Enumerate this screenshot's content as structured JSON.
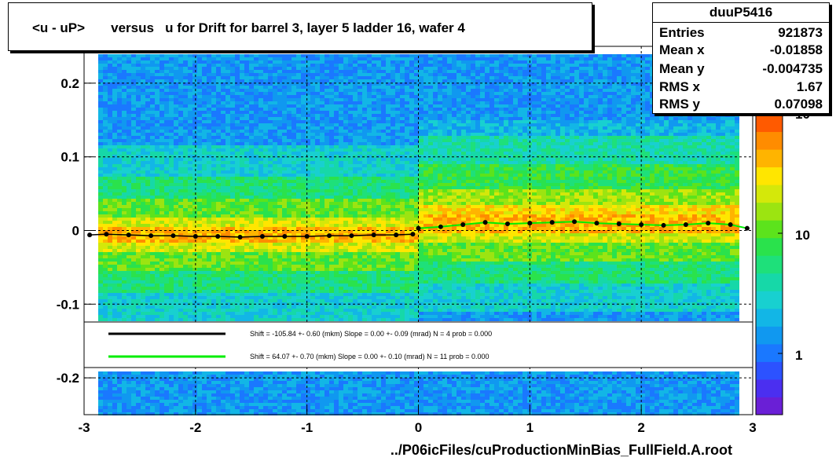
{
  "title": "<u - uP>       versus   u for Drift for barrel 3, layer 5 ladder 16, wafer 4",
  "stats": {
    "name": "duuP5416",
    "rows": [
      {
        "label": "Entries",
        "value": "921873"
      },
      {
        "label": "Mean x",
        "value": "-0.01858"
      },
      {
        "label": "Mean y",
        "value": "-0.004735"
      },
      {
        "label": "RMS x",
        "value": "1.67"
      },
      {
        "label": "RMS y",
        "value": "0.07098"
      }
    ]
  },
  "xlabel": "../P06icFiles/cuProductionMinBias_FullField.A.root",
  "colors": {
    "series1": "#000000",
    "series2": "#00ee00",
    "markers_open": "#ff33ff"
  },
  "chart_data": {
    "type": "heatmap",
    "xlim": [
      -3,
      3
    ],
    "ylim": [
      -0.25,
      0.25
    ],
    "x_ticks": [
      "-3",
      "-2",
      "-1",
      "0",
      "1",
      "2",
      "3"
    ],
    "y_ticks": [
      "0.2",
      "0.1",
      "0",
      "-0.1",
      "-0.2"
    ],
    "y_tick_values": [
      0.2,
      0.1,
      0,
      -0.1,
      -0.2
    ],
    "z_scale": "log",
    "z_ticks": [
      "1",
      "10",
      "10²"
    ],
    "z_tick_values": [
      1,
      10,
      100
    ],
    "grid": true,
    "legend": [
      {
        "text": "Shift =   -105.84 +- 0.60 (mkm) Slope =     0.00 +- 0.09 (mrad)  N = 4 prob = 0.000",
        "color": "#000000"
      },
      {
        "text": "Shift =    64.07 +- 0.70 (mkm) Slope =     0.00 +- 0.10 (mrad)  N = 11 prob = 0.000",
        "color": "#00ee00"
      }
    ],
    "series": [
      {
        "x": [
          -2.95,
          -2.8,
          -2.6,
          -2.4,
          -2.2,
          -2.0,
          -1.8,
          -1.6,
          -1.4,
          -1.2,
          -1.0,
          -0.8,
          -0.6,
          -0.4,
          -0.2,
          -0.05
        ],
        "values": [
          -0.006,
          -0.005,
          -0.006,
          -0.007,
          -0.007,
          -0.008,
          -0.008,
          -0.009,
          -0.008,
          -0.008,
          -0.008,
          -0.007,
          -0.007,
          -0.006,
          -0.006,
          -0.005
        ]
      },
      {
        "x": [
          0.0,
          0.2,
          0.4,
          0.6,
          0.8,
          1.0,
          1.2,
          1.4,
          1.6,
          1.8,
          2.0,
          2.2,
          2.4,
          2.6,
          2.8,
          2.95
        ],
        "values": [
          0.003,
          0.005,
          0.008,
          0.011,
          0.009,
          0.01,
          0.011,
          0.012,
          0.01,
          0.009,
          0.008,
          0.007,
          0.008,
          0.01,
          0.008,
          0.003
        ]
      }
    ]
  }
}
